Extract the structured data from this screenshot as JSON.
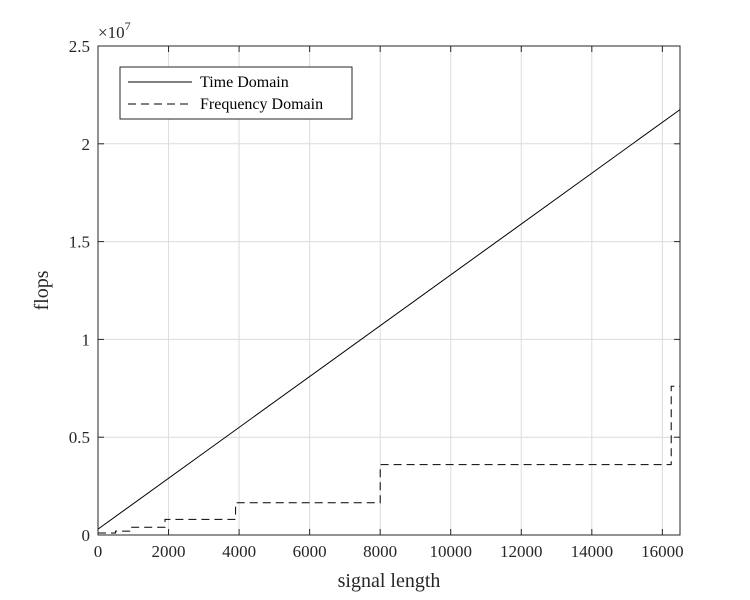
{
  "chart_data": {
    "type": "line",
    "xlabel": "signal length",
    "ylabel": "flops",
    "y_exponent_label": "×10",
    "y_exponent_power": "7",
    "xlim": [
      0,
      16500
    ],
    "ylim": [
      0,
      2.5
    ],
    "x_ticks": [
      0,
      2000,
      4000,
      6000,
      8000,
      10000,
      12000,
      14000,
      16000
    ],
    "x_tick_labels": [
      "0",
      "2000",
      "4000",
      "6000",
      "8000",
      "10000",
      "12000",
      "14000",
      "16000"
    ],
    "y_ticks": [
      0,
      0.5,
      1,
      1.5,
      2,
      2.5
    ],
    "y_tick_labels": [
      "0",
      "0.5",
      "1",
      "1.5",
      "2",
      "2.5"
    ],
    "grid": true,
    "legend_position": "top-left",
    "colors": {
      "series": "#000000",
      "axis": "#262626",
      "grid": "#dcdcdc"
    },
    "series": [
      {
        "name": "Time Domain",
        "style": "solid",
        "x": [
          0,
          16500
        ],
        "y": [
          0.03,
          2.175
        ]
      },
      {
        "name": "Frequency Domain",
        "style": "dashed",
        "x": [
          0,
          500,
          500,
          900,
          900,
          1900,
          1900,
          3900,
          3900,
          8000,
          8000,
          16250,
          16250,
          16500
        ],
        "y": [
          0.01,
          0.01,
          0.02,
          0.02,
          0.04,
          0.04,
          0.08,
          0.08,
          0.165,
          0.165,
          0.36,
          0.36,
          0.76,
          0.76
        ]
      }
    ]
  }
}
